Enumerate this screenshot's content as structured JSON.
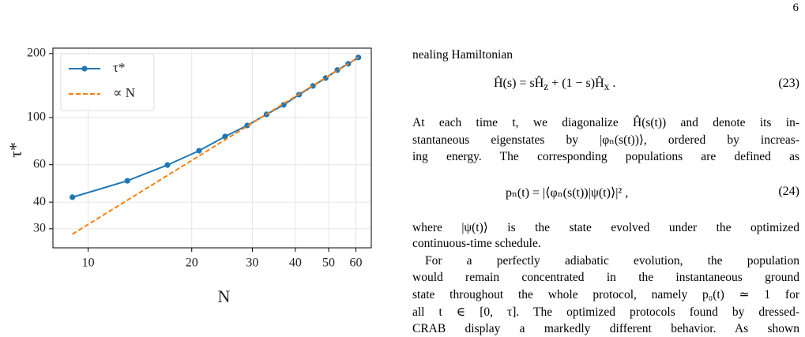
{
  "page_number": "6",
  "chart_data": {
    "type": "line",
    "xlabel": "N",
    "ylabel": "τ*",
    "xscale": "log",
    "yscale": "log",
    "xlim": [
      7.9,
      66.5
    ],
    "ylim": [
      24.4,
      212
    ],
    "xticks": [
      10,
      20,
      30,
      40,
      50,
      60
    ],
    "yticks": [
      30,
      40,
      60,
      100,
      200
    ],
    "grid": true,
    "legend": "upper left",
    "series": [
      {
        "name": "τ*",
        "color": "#1f77b4",
        "linestyle": "solid",
        "marker": "o",
        "x": [
          9,
          13,
          17,
          21,
          25,
          29,
          33,
          37,
          41,
          45,
          49,
          53,
          57,
          61
        ],
        "values": [
          42.2,
          50.4,
          59.8,
          69.8,
          81.4,
          91.8,
          103.5,
          114.7,
          128.1,
          140.8,
          153.4,
          167.2,
          179,
          191.6
        ]
      },
      {
        "name": "∝ N",
        "color": "#ff7f0e",
        "linestyle": "dashed",
        "marker": "none",
        "x": [
          9,
          61
        ],
        "values": [
          28.3,
          191.6
        ]
      }
    ]
  },
  "text": {
    "lead": "nealing Hamiltonian",
    "eq23": {
      "parts": [
        "Ĥ(s) = sĤ",
        "z",
        " + (1 − s)Ĥ",
        "x",
        " ."
      ],
      "number": "(23)"
    },
    "para1": [
      "At each time t, we diagonalize Ĥ(s(t)) and denote its in-",
      "stantaneous eigenstates by |φₙ(s(t))⟩, ordered by increas-",
      "ing energy. The corresponding populations are defined as"
    ],
    "eq24": {
      "text": "pₙ(t) = |⟨φₙ(s(t))|ψ(t)⟩|² ,",
      "number": "(24)"
    },
    "para2": [
      "where |ψ(t)⟩ is the state evolved under the optimized",
      "continuous-time schedule."
    ],
    "para3": [
      "For a perfectly adiabatic evolution, the population",
      "would remain concentrated in the instantaneous ground",
      "state throughout the whole protocol, namely p₀(t) ≃ 1 for",
      "all t ∈ [0, τ]. The optimized protocols found by dressed-",
      "CRAB display a markedly different behavior. As shown"
    ]
  }
}
